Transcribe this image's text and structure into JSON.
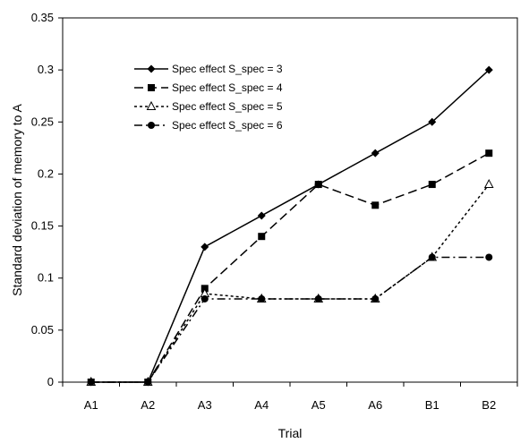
{
  "chart_data": {
    "type": "line",
    "categories": [
      "A1",
      "A2",
      "A3",
      "A4",
      "A5",
      "A6",
      "B1",
      "B2"
    ],
    "series": [
      {
        "name": "Spec effect S_spec = 3",
        "values": [
          0,
          0,
          0.13,
          0.16,
          0.19,
          0.22,
          0.25,
          0.3
        ],
        "marker": "diamond",
        "dash": "solid",
        "color": "#000000"
      },
      {
        "name": "Spec effect S_spec = 4",
        "values": [
          0,
          0,
          0.09,
          0.14,
          0.19,
          0.17,
          0.19,
          0.22
        ],
        "marker": "square",
        "dash": "dashed",
        "color": "#000000"
      },
      {
        "name": "Spec effect S_spec = 5",
        "values": [
          0,
          0,
          0.085,
          0.08,
          0.08,
          0.08,
          0.12,
          0.19
        ],
        "marker": "triangle-open",
        "dash": "dotted",
        "color": "#000000"
      },
      {
        "name": "Spec effect S_spec = 6",
        "values": [
          0,
          0,
          0.08,
          0.08,
          0.08,
          0.08,
          0.12,
          0.12
        ],
        "marker": "circle",
        "dash": "dash-dot",
        "color": "#000000"
      }
    ],
    "xlabel": "Trial",
    "ylabel": "Standard deviation of memory to A",
    "ylim": [
      0,
      0.35
    ],
    "yticks": [
      "0",
      "0.05",
      "0.1",
      "0.15",
      "0.2",
      "0.25",
      "0.3",
      "0.35"
    ],
    "grid": false,
    "legend_position": "top-left"
  }
}
